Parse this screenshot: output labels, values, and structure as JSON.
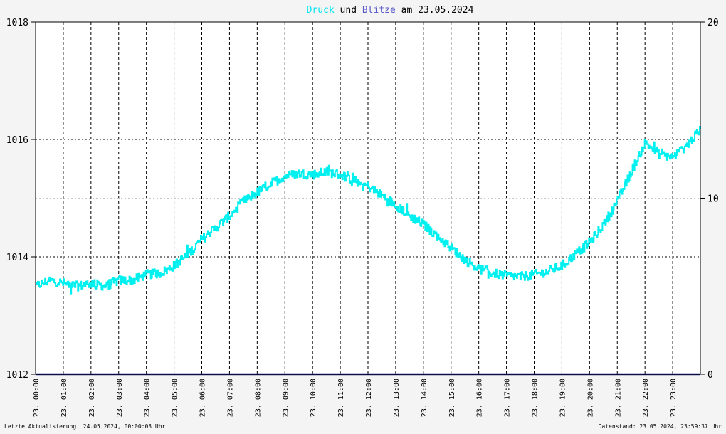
{
  "chart_data": {
    "type": "line",
    "title": {
      "parts": [
        {
          "text": "Druck",
          "color": "#00e5f0"
        },
        {
          "text": " und ",
          "color": "#000000"
        },
        {
          "text": "Blitze",
          "color": "#5858c8"
        },
        {
          "text": " am 23.05.2024",
          "color": "#000000"
        }
      ]
    },
    "left_axis": {
      "ylim": [
        1012,
        1018
      ],
      "ticks": [
        "1012",
        "1014",
        "1016",
        "1018"
      ]
    },
    "right_axis": {
      "ylim": [
        0,
        20
      ],
      "ticks": [
        "0",
        "10",
        "20"
      ]
    },
    "xlim": [
      0,
      24
    ],
    "x_ticks": [
      "23. 00:00",
      "23. 01:00",
      "23. 02:00",
      "23. 03:00",
      "23. 04:00",
      "23. 05:00",
      "23. 06:00",
      "23. 07:00",
      "23. 08:00",
      "23. 09:00",
      "23. 10:00",
      "23. 11:00",
      "23. 12:00",
      "23. 13:00",
      "23. 14:00",
      "23. 15:00",
      "23. 16:00",
      "23. 17:00",
      "23. 18:00",
      "23. 19:00",
      "23. 20:00",
      "23. 21:00",
      "23. 22:00",
      "23. 23:00"
    ],
    "grid": true,
    "series": [
      {
        "name": "Druck",
        "color": "#00f0f0",
        "axis": "left",
        "x": [
          0,
          0.5,
          1,
          1.5,
          2,
          2.5,
          3,
          3.5,
          4,
          4.5,
          5,
          5.5,
          6,
          6.5,
          7,
          7.5,
          8,
          8.5,
          9,
          9.5,
          10,
          10.5,
          11,
          11.5,
          12,
          12.5,
          13,
          13.5,
          14,
          14.5,
          15,
          15.5,
          16,
          16.5,
          17,
          17.5,
          18,
          18.5,
          19,
          19.5,
          20,
          20.5,
          21,
          21.5,
          22,
          22.5,
          23,
          23.5,
          23.98
        ],
        "values": [
          1013.5,
          1013.6,
          1013.55,
          1013.5,
          1013.55,
          1013.5,
          1013.6,
          1013.6,
          1013.7,
          1013.72,
          1013.85,
          1014.05,
          1014.3,
          1014.5,
          1014.7,
          1014.95,
          1015.1,
          1015.25,
          1015.38,
          1015.42,
          1015.4,
          1015.45,
          1015.4,
          1015.3,
          1015.2,
          1015.05,
          1014.88,
          1014.7,
          1014.55,
          1014.35,
          1014.15,
          1013.95,
          1013.8,
          1013.72,
          1013.68,
          1013.66,
          1013.7,
          1013.75,
          1013.85,
          1014.05,
          1014.25,
          1014.55,
          1014.95,
          1015.45,
          1015.95,
          1015.75,
          1015.7,
          1015.9,
          1016.15
        ],
        "noise": 0.08
      },
      {
        "name": "Blitze",
        "color": "#1a1a7a",
        "axis": "right",
        "x": [
          0,
          24
        ],
        "values": [
          0,
          0
        ]
      }
    ]
  },
  "footer": {
    "left": "Letzte Aktualisierung: 24.05.2024, 00:00:03 Uhr",
    "right": "Datenstand: 23.05.2024, 23:59:37 Uhr"
  }
}
